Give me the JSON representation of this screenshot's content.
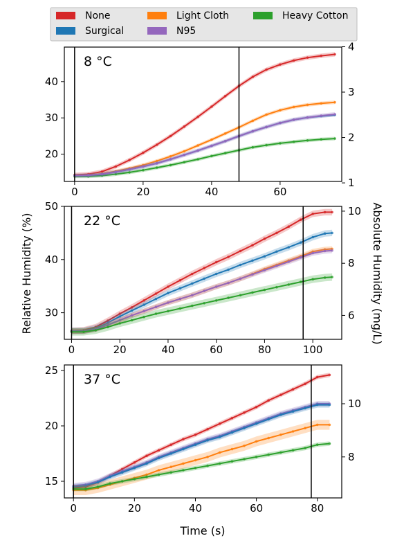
{
  "legend": {
    "placement": "top",
    "entries": [
      {
        "label": "None",
        "color": "#d62728"
      },
      {
        "label": "Light Cloth",
        "color": "#ff7f0e"
      },
      {
        "label": "Heavy Cotton",
        "color": "#2ca02c"
      },
      {
        "label": "Surgical",
        "color": "#1f77b4"
      },
      {
        "label": "N95",
        "color": "#9467bd"
      }
    ]
  },
  "shared_labels": {
    "ylabel_left": "Relative Humidity (%)",
    "ylabel_right": "Absolute Humidity (mg/L)",
    "xlabel": "Time (s)"
  },
  "chart_data": [
    {
      "type": "line",
      "title": "8 °C",
      "xlim": [
        -3,
        78
      ],
      "ylim": [
        12.5,
        49.5
      ],
      "xticks": [
        0,
        20,
        40,
        60
      ],
      "yticks": [
        20,
        30,
        40
      ],
      "right_axis": {
        "label": "Absolute Humidity (mg/L)",
        "ticks": [
          {
            "value": 1,
            "at": 12.1
          },
          {
            "value": 2,
            "at": 24.6
          },
          {
            "value": 3,
            "at": 37.1
          },
          {
            "value": 4,
            "at": 49.6
          }
        ]
      },
      "vlines": [
        0,
        48
      ],
      "x": [
        0,
        4,
        8,
        12,
        16,
        20,
        24,
        28,
        32,
        36,
        40,
        44,
        48,
        52,
        56,
        60,
        64,
        68,
        72,
        76
      ],
      "series": [
        {
          "name": "None",
          "color": "#d62728",
          "band": 0.6,
          "values": [
            14.3,
            14.5,
            15.2,
            16.6,
            18.4,
            20.4,
            22.6,
            25.0,
            27.6,
            30.3,
            33.1,
            36.0,
            38.8,
            41.3,
            43.3,
            44.7,
            45.8,
            46.6,
            47.1,
            47.5
          ]
        },
        {
          "name": "Light Cloth",
          "color": "#ff7f0e",
          "band": 0.5,
          "values": [
            14.1,
            14.2,
            14.6,
            15.3,
            16.1,
            17.0,
            18.1,
            19.4,
            20.8,
            22.4,
            24.0,
            25.7,
            27.4,
            29.2,
            30.9,
            32.1,
            33.0,
            33.6,
            34.0,
            34.3
          ]
        },
        {
          "name": "Heavy Cotton",
          "color": "#2ca02c",
          "band": 0.5,
          "values": [
            13.9,
            13.9,
            14.1,
            14.5,
            15.0,
            15.6,
            16.3,
            17.0,
            17.8,
            18.6,
            19.5,
            20.3,
            21.1,
            21.9,
            22.5,
            23.0,
            23.4,
            23.8,
            24.1,
            24.3
          ]
        },
        {
          "name": "Surgical",
          "color": "#1f77b4",
          "band": 0.4,
          "values": [
            14.1,
            14.2,
            14.5,
            15.1,
            15.8,
            16.6,
            17.5,
            18.6,
            19.8,
            21.0,
            22.3,
            23.6,
            25.0,
            26.3,
            27.5,
            28.6,
            29.5,
            30.1,
            30.5,
            30.8
          ]
        },
        {
          "name": "N95",
          "color": "#9467bd",
          "band": 0.6,
          "values": [
            14.1,
            14.2,
            14.5,
            15.1,
            15.8,
            16.6,
            17.5,
            18.6,
            19.8,
            21.0,
            22.3,
            23.6,
            25.0,
            26.3,
            27.5,
            28.6,
            29.5,
            30.1,
            30.6,
            31.0
          ]
        }
      ]
    },
    {
      "type": "line",
      "title": "22 °C",
      "xlim": [
        -3,
        112
      ],
      "ylim": [
        25,
        50
      ],
      "xticks": [
        0,
        20,
        40,
        60,
        80,
        100
      ],
      "yticks": [
        30,
        40,
        50
      ],
      "right_axis": {
        "label": "Absolute Humidity (mg/L)",
        "ticks": [
          {
            "value": 6,
            "at": 29.5
          },
          {
            "value": 8,
            "at": 39.3
          },
          {
            "value": 10,
            "at": 49.1
          }
        ]
      },
      "vlines": [
        0,
        96
      ],
      "x": [
        0,
        5,
        10,
        15,
        20,
        25,
        30,
        35,
        40,
        45,
        50,
        55,
        60,
        65,
        70,
        75,
        80,
        85,
        90,
        95,
        100,
        105,
        108
      ],
      "series": [
        {
          "name": "None",
          "color": "#d62728",
          "band": 0.6,
          "values": [
            26.6,
            26.7,
            27.3,
            28.5,
            29.8,
            31.0,
            32.3,
            33.6,
            34.9,
            36.1,
            37.3,
            38.4,
            39.5,
            40.5,
            41.6,
            42.7,
            43.9,
            45.0,
            46.2,
            47.5,
            48.6,
            48.9,
            48.9
          ]
        },
        {
          "name": "Surgical",
          "color": "#1f77b4",
          "band": 0.6,
          "values": [
            26.6,
            26.6,
            27.1,
            28.1,
            29.3,
            30.4,
            31.5,
            32.6,
            33.7,
            34.6,
            35.5,
            36.4,
            37.3,
            38.1,
            39.0,
            39.8,
            40.6,
            41.5,
            42.3,
            43.2,
            44.2,
            44.9,
            45.0
          ]
        },
        {
          "name": "Light Cloth",
          "color": "#ff7f0e",
          "band": 0.5,
          "values": [
            26.5,
            26.5,
            26.9,
            27.7,
            28.6,
            29.5,
            30.3,
            31.1,
            31.9,
            32.6,
            33.3,
            34.1,
            34.9,
            35.6,
            36.4,
            37.3,
            38.2,
            39.0,
            39.8,
            40.6,
            41.5,
            41.9,
            42.0
          ]
        },
        {
          "name": "N95",
          "color": "#9467bd",
          "band": 0.5,
          "values": [
            26.5,
            26.5,
            26.9,
            27.7,
            28.6,
            29.5,
            30.3,
            31.1,
            31.9,
            32.6,
            33.3,
            34.1,
            34.9,
            35.6,
            36.4,
            37.2,
            38.0,
            38.8,
            39.6,
            40.4,
            41.2,
            41.6,
            41.7
          ]
        },
        {
          "name": "Heavy Cotton",
          "color": "#2ca02c",
          "band": 0.7,
          "values": [
            26.4,
            26.4,
            26.7,
            27.3,
            28.0,
            28.6,
            29.2,
            29.8,
            30.3,
            30.8,
            31.3,
            31.8,
            32.3,
            32.8,
            33.3,
            33.8,
            34.3,
            34.8,
            35.3,
            35.8,
            36.3,
            36.6,
            36.7
          ]
        }
      ]
    },
    {
      "type": "line",
      "title": "37 °C",
      "xlim": [
        -3,
        88
      ],
      "ylim": [
        13.5,
        25.5
      ],
      "xticks": [
        0,
        20,
        40,
        60,
        80
      ],
      "yticks": [
        15,
        20,
        25
      ],
      "right_axis": {
        "label": "Absolute Humidity (mg/L)",
        "ticks": [
          {
            "value": 8,
            "at": 17.2
          },
          {
            "value": 10,
            "at": 22.0
          }
        ]
      },
      "vlines": [
        0,
        78
      ],
      "x": [
        0,
        4,
        8,
        12,
        16,
        20,
        24,
        28,
        32,
        36,
        40,
        44,
        48,
        52,
        56,
        60,
        64,
        68,
        72,
        76,
        80,
        84
      ],
      "series": [
        {
          "name": "None",
          "color": "#d62728",
          "band": 0.2,
          "values": [
            14.4,
            14.5,
            14.9,
            15.5,
            16.1,
            16.7,
            17.3,
            17.8,
            18.3,
            18.8,
            19.2,
            19.7,
            20.2,
            20.7,
            21.2,
            21.7,
            22.3,
            22.8,
            23.3,
            23.8,
            24.4,
            24.6
          ]
        },
        {
          "name": "N95",
          "color": "#9467bd",
          "band": 0.25,
          "values": [
            14.6,
            14.7,
            15.0,
            15.5,
            15.9,
            16.3,
            16.7,
            17.2,
            17.6,
            18.0,
            18.4,
            18.8,
            19.1,
            19.5,
            19.9,
            20.3,
            20.7,
            21.1,
            21.4,
            21.7,
            22.0,
            22.0
          ]
        },
        {
          "name": "Surgical",
          "color": "#1f77b4",
          "band": 0.25,
          "values": [
            14.5,
            14.6,
            14.9,
            15.4,
            15.8,
            16.2,
            16.6,
            17.1,
            17.5,
            17.9,
            18.3,
            18.7,
            19.0,
            19.4,
            19.8,
            20.2,
            20.6,
            21.0,
            21.3,
            21.6,
            21.9,
            21.9
          ]
        },
        {
          "name": "Light Cloth",
          "color": "#ff7f0e",
          "band": 0.45,
          "values": [
            14.2,
            14.2,
            14.4,
            14.7,
            15.0,
            15.3,
            15.6,
            16.0,
            16.3,
            16.6,
            16.9,
            17.2,
            17.6,
            17.9,
            18.2,
            18.6,
            18.9,
            19.2,
            19.5,
            19.8,
            20.1,
            20.1
          ]
        },
        {
          "name": "Heavy Cotton",
          "color": "#2ca02c",
          "band": 0.2,
          "values": [
            14.3,
            14.3,
            14.5,
            14.8,
            15.0,
            15.2,
            15.4,
            15.6,
            15.8,
            16.0,
            16.2,
            16.4,
            16.6,
            16.8,
            17.0,
            17.2,
            17.4,
            17.6,
            17.8,
            18.0,
            18.3,
            18.4
          ]
        }
      ]
    }
  ]
}
